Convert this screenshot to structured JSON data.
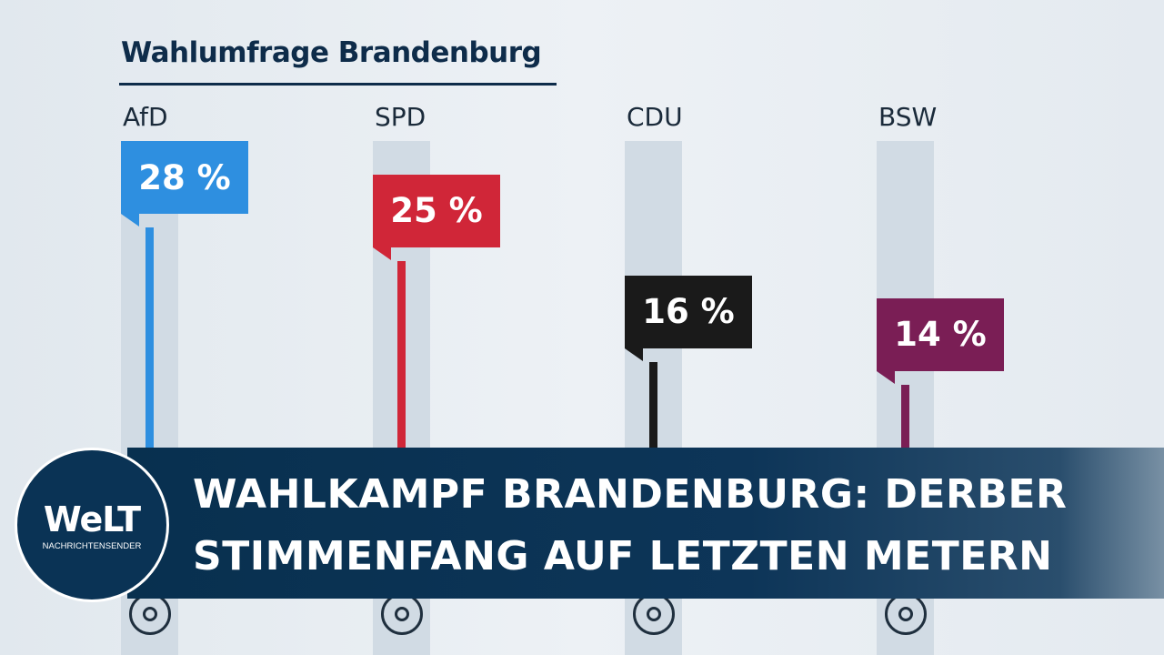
{
  "chart_data": {
    "type": "bar",
    "title": "Wahlumfrage Brandenburg",
    "categories": [
      "AfD",
      "SPD",
      "CDU",
      "BSW"
    ],
    "values": [
      28,
      25,
      16,
      14
    ],
    "value_labels": [
      "28 %",
      "25 %",
      "16 %",
      "14 %"
    ],
    "unit": "%",
    "colors": [
      "#2e8fe0",
      "#d02638",
      "#1a1a1a",
      "#7a1e55"
    ]
  },
  "banner": {
    "line1": "WAHLKAMPF BRANDENBURG: DERBER",
    "line2": "STIMMENFANG AUF LETZTEN METERN"
  },
  "logo": {
    "word": "WeLT",
    "sub": "NACHRICHTENSENDER"
  },
  "icons": {
    "knob": "circle-dial-icon"
  }
}
